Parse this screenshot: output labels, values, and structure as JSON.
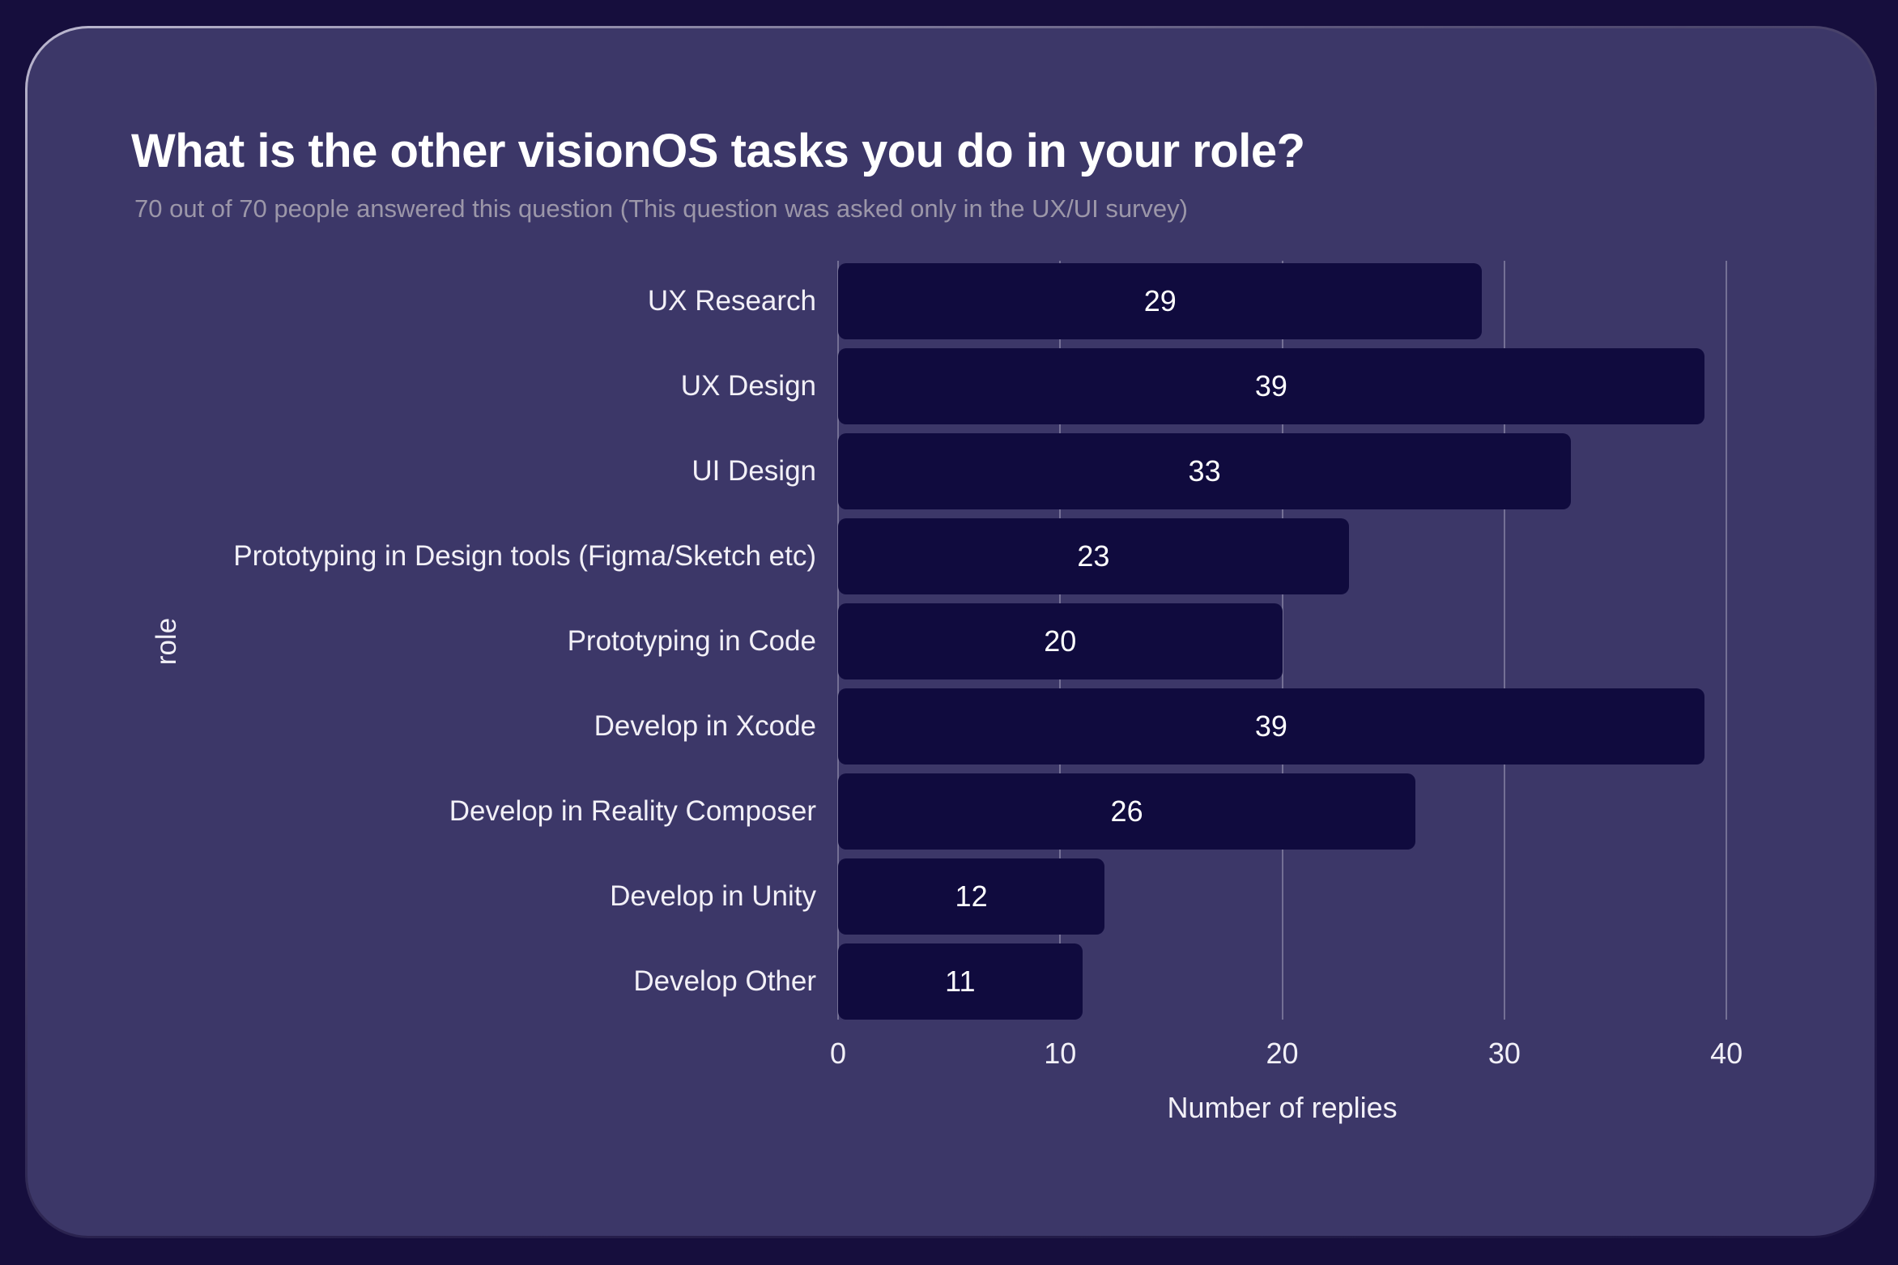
{
  "card": {
    "title": "What is the other visionOS tasks you do in your role?",
    "subtitle": "70 out of 70 people answered this question (This question was asked only in the UX/UI survey)"
  },
  "chart_data": {
    "type": "bar",
    "orientation": "horizontal",
    "title": "What is the other visionOS tasks you do in your role?",
    "subtitle": "70 out of 70 people answered this question (This question was asked only in the UX/UI survey)",
    "categories": [
      "UX Research",
      "UX Design",
      "UI Design",
      "Prototyping in Design tools (Figma/Sketch etc)",
      "Prototyping in Code",
      "Develop in Xcode",
      "Develop in Reality Composer",
      "Develop in Unity",
      "Develop Other"
    ],
    "values": [
      29,
      39,
      33,
      23,
      20,
      39,
      26,
      12,
      11
    ],
    "xlabel": "Number of replies",
    "ylabel": "role",
    "xticks": [
      0,
      10,
      20,
      30,
      40
    ],
    "xlim": [
      0,
      42
    ],
    "grid": true,
    "value_labels": "inside-center",
    "colors": {
      "page_bg": "#160E3D",
      "card_bg": "#3C3768",
      "bar": "#100B3E",
      "gridline": "rgba(235,233,245,0.32)",
      "title": "#FFFFFF",
      "subtitle": "#9C97A9",
      "label": "#F2F0F7",
      "value": "#FFFFFF"
    }
  }
}
